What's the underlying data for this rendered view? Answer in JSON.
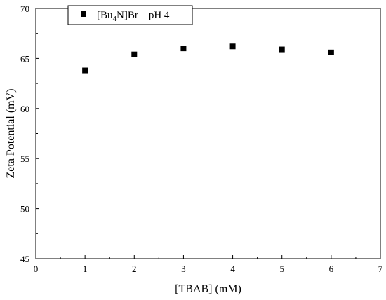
{
  "chart_data": {
    "type": "scatter",
    "xlabel": "[TBAB] (mM)",
    "ylabel": "Zeta Potential (mV)",
    "xlim": [
      0,
      7
    ],
    "ylim": [
      45,
      70
    ],
    "xticks": [
      0,
      1,
      2,
      3,
      4,
      5,
      6,
      7
    ],
    "yticks": [
      45,
      50,
      55,
      60,
      65,
      70
    ],
    "grid": false,
    "legend_position": "top-left",
    "series": [
      {
        "name": "[Bu4N]Br    pH 4",
        "legend": {
          "prefix": "[Bu",
          "sub": "4",
          "suffix": "N]Br    pH 4"
        },
        "marker": "square",
        "color": "#000000",
        "x": [
          1,
          2,
          3,
          4,
          5,
          6
        ],
        "y": [
          63.8,
          65.4,
          66.0,
          66.2,
          65.9,
          65.6
        ]
      }
    ]
  }
}
